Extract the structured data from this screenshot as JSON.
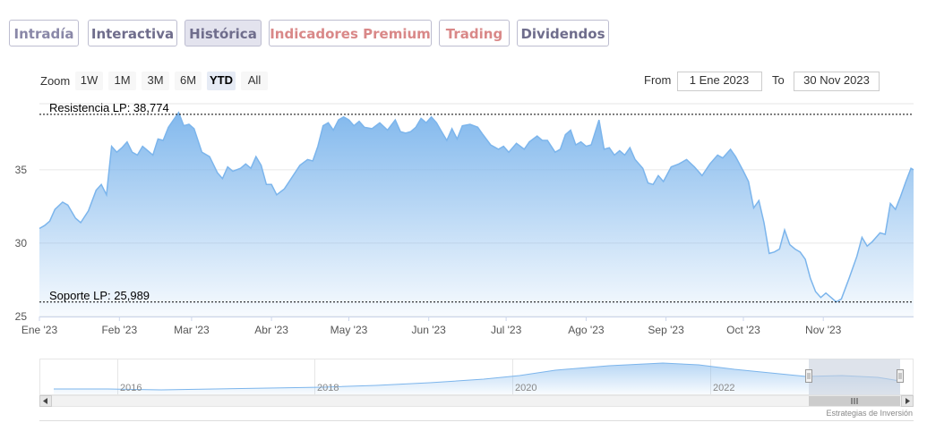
{
  "tabs": [
    {
      "label": "Intradía",
      "color": "#8a88a8",
      "active": false
    },
    {
      "label": "Interactiva",
      "color": "#6f6d8c",
      "active": false
    },
    {
      "label": "Histórica",
      "color": "#6f6d8c",
      "active": true
    },
    {
      "label": "Indicadores Premium",
      "color": "#d98888",
      "active": false
    },
    {
      "label": "Trading",
      "color": "#d98888",
      "active": false
    },
    {
      "label": "Dividendos",
      "color": "#6f6d8c",
      "active": false
    }
  ],
  "zoom": {
    "label": "Zoom",
    "buttons": [
      "1W",
      "1M",
      "3M",
      "6M",
      "YTD",
      "All"
    ],
    "selected": "YTD"
  },
  "range": {
    "from_label": "From",
    "from_value": "1 Ene 2023",
    "to_label": "To",
    "to_value": "30 Nov 2023"
  },
  "credit": "Estrategias de Inversión",
  "chart_data": {
    "type": "area",
    "title": "",
    "x_start": "2023-01-01",
    "x_end": "2023-12-06",
    "ylim": [
      25,
      39.5
    ],
    "y_ticks": [
      25,
      30,
      35
    ],
    "x_ticks": [
      {
        "date": "2023-01-01",
        "label": "Ene '23"
      },
      {
        "date": "2023-02-01",
        "label": "Feb '23"
      },
      {
        "date": "2023-03-01",
        "label": "Mar '23"
      },
      {
        "date": "2023-04-01",
        "label": "Abr '23"
      },
      {
        "date": "2023-05-01",
        "label": "May '23"
      },
      {
        "date": "2023-06-01",
        "label": "Jun '23"
      },
      {
        "date": "2023-07-01",
        "label": "Jul '23"
      },
      {
        "date": "2023-08-01",
        "label": "Ago '23"
      },
      {
        "date": "2023-09-01",
        "label": "Sep '23"
      },
      {
        "date": "2023-10-01",
        "label": "Oct '23"
      },
      {
        "date": "2023-11-01",
        "label": "Nov '23"
      }
    ],
    "grid": true,
    "color": "#7cb5ec",
    "series": [
      {
        "points": [
          [
            "2023-01-01",
            31.0
          ],
          [
            "2023-01-03",
            31.2
          ],
          [
            "2023-01-05",
            31.5
          ],
          [
            "2023-01-07",
            32.3
          ],
          [
            "2023-01-10",
            32.8
          ],
          [
            "2023-01-12",
            32.6
          ],
          [
            "2023-01-15",
            31.7
          ],
          [
            "2023-01-17",
            31.4
          ],
          [
            "2023-01-20",
            32.2
          ],
          [
            "2023-01-23",
            33.6
          ],
          [
            "2023-01-25",
            34.0
          ],
          [
            "2023-01-27",
            33.3
          ],
          [
            "2023-01-29",
            36.6
          ],
          [
            "2023-01-31",
            36.2
          ],
          [
            "2023-02-02",
            36.5
          ],
          [
            "2023-02-04",
            36.9
          ],
          [
            "2023-02-06",
            36.2
          ],
          [
            "2023-02-08",
            36.0
          ],
          [
            "2023-02-10",
            36.6
          ],
          [
            "2023-02-12",
            36.3
          ],
          [
            "2023-02-14",
            36.0
          ],
          [
            "2023-02-16",
            37.1
          ],
          [
            "2023-02-18",
            37.0
          ],
          [
            "2023-02-20",
            37.9
          ],
          [
            "2023-02-22",
            38.4
          ],
          [
            "2023-02-24",
            38.9
          ],
          [
            "2023-02-26",
            38.0
          ],
          [
            "2023-02-28",
            38.1
          ],
          [
            "2023-03-02",
            37.8
          ],
          [
            "2023-03-05",
            36.2
          ],
          [
            "2023-03-08",
            35.9
          ],
          [
            "2023-03-11",
            34.8
          ],
          [
            "2023-03-13",
            34.4
          ],
          [
            "2023-03-15",
            35.2
          ],
          [
            "2023-03-17",
            34.9
          ],
          [
            "2023-03-20",
            35.1
          ],
          [
            "2023-03-22",
            35.4
          ],
          [
            "2023-03-24",
            35.1
          ],
          [
            "2023-03-26",
            35.9
          ],
          [
            "2023-03-28",
            35.3
          ],
          [
            "2023-03-30",
            34.0
          ],
          [
            "2023-04-01",
            34.0
          ],
          [
            "2023-04-03",
            33.3
          ],
          [
            "2023-04-06",
            33.7
          ],
          [
            "2023-04-09",
            34.5
          ],
          [
            "2023-04-12",
            35.3
          ],
          [
            "2023-04-15",
            35.7
          ],
          [
            "2023-04-17",
            35.6
          ],
          [
            "2023-04-19",
            36.6
          ],
          [
            "2023-04-21",
            38.0
          ],
          [
            "2023-04-23",
            38.2
          ],
          [
            "2023-04-25",
            37.7
          ],
          [
            "2023-04-27",
            38.4
          ],
          [
            "2023-04-29",
            38.6
          ],
          [
            "2023-05-01",
            38.4
          ],
          [
            "2023-05-03",
            38.0
          ],
          [
            "2023-05-05",
            38.3
          ],
          [
            "2023-05-07",
            37.9
          ],
          [
            "2023-05-10",
            37.8
          ],
          [
            "2023-05-13",
            38.2
          ],
          [
            "2023-05-16",
            37.7
          ],
          [
            "2023-05-19",
            38.4
          ],
          [
            "2023-05-21",
            37.6
          ],
          [
            "2023-05-23",
            37.5
          ],
          [
            "2023-05-25",
            37.6
          ],
          [
            "2023-05-27",
            37.9
          ],
          [
            "2023-05-29",
            38.5
          ],
          [
            "2023-05-31",
            38.2
          ],
          [
            "2023-06-02",
            38.6
          ],
          [
            "2023-06-04",
            38.2
          ],
          [
            "2023-06-06",
            37.6
          ],
          [
            "2023-06-08",
            37.0
          ],
          [
            "2023-06-10",
            37.8
          ],
          [
            "2023-06-12",
            37.1
          ],
          [
            "2023-06-14",
            38.0
          ],
          [
            "2023-06-17",
            38.1
          ],
          [
            "2023-06-20",
            37.9
          ],
          [
            "2023-06-22",
            37.4
          ],
          [
            "2023-06-25",
            36.7
          ],
          [
            "2023-06-28",
            36.4
          ],
          [
            "2023-06-30",
            36.6
          ],
          [
            "2023-07-02",
            36.2
          ],
          [
            "2023-07-05",
            36.8
          ],
          [
            "2023-07-08",
            36.4
          ],
          [
            "2023-07-10",
            36.9
          ],
          [
            "2023-07-13",
            37.3
          ],
          [
            "2023-07-15",
            37.0
          ],
          [
            "2023-07-17",
            37.0
          ],
          [
            "2023-07-20",
            36.2
          ],
          [
            "2023-07-22",
            36.4
          ],
          [
            "2023-07-24",
            37.4
          ],
          [
            "2023-07-26",
            37.7
          ],
          [
            "2023-07-28",
            36.7
          ],
          [
            "2023-07-30",
            36.9
          ],
          [
            "2023-08-01",
            36.6
          ],
          [
            "2023-08-03",
            36.7
          ],
          [
            "2023-08-06",
            38.4
          ],
          [
            "2023-08-08",
            36.4
          ],
          [
            "2023-08-10",
            36.5
          ],
          [
            "2023-08-12",
            36.0
          ],
          [
            "2023-08-14",
            36.3
          ],
          [
            "2023-08-16",
            36.0
          ],
          [
            "2023-08-18",
            36.5
          ],
          [
            "2023-08-20",
            35.7
          ],
          [
            "2023-08-23",
            35.1
          ],
          [
            "2023-08-25",
            34.1
          ],
          [
            "2023-08-27",
            34.0
          ],
          [
            "2023-08-29",
            34.6
          ],
          [
            "2023-08-31",
            34.2
          ],
          [
            "2023-09-03",
            35.2
          ],
          [
            "2023-09-06",
            35.4
          ],
          [
            "2023-09-09",
            35.7
          ],
          [
            "2023-09-12",
            35.2
          ],
          [
            "2023-09-15",
            34.6
          ],
          [
            "2023-09-18",
            35.4
          ],
          [
            "2023-09-21",
            36.0
          ],
          [
            "2023-09-23",
            35.8
          ],
          [
            "2023-09-26",
            36.4
          ],
          [
            "2023-09-28",
            35.9
          ],
          [
            "2023-10-01",
            34.9
          ],
          [
            "2023-10-03",
            34.2
          ],
          [
            "2023-10-05",
            32.4
          ],
          [
            "2023-10-07",
            32.9
          ],
          [
            "2023-10-09",
            31.4
          ],
          [
            "2023-10-11",
            29.3
          ],
          [
            "2023-10-13",
            29.4
          ],
          [
            "2023-10-15",
            29.6
          ],
          [
            "2023-10-17",
            30.9
          ],
          [
            "2023-10-19",
            29.9
          ],
          [
            "2023-10-21",
            29.6
          ],
          [
            "2023-10-23",
            29.4
          ],
          [
            "2023-10-25",
            28.9
          ],
          [
            "2023-10-27",
            27.6
          ],
          [
            "2023-10-29",
            26.7
          ],
          [
            "2023-10-31",
            26.3
          ],
          [
            "2023-11-02",
            26.6
          ],
          [
            "2023-11-04",
            26.3
          ],
          [
            "2023-11-06",
            26.0
          ],
          [
            "2023-11-08",
            26.2
          ],
          [
            "2023-11-11",
            27.6
          ],
          [
            "2023-11-14",
            29.1
          ],
          [
            "2023-11-16",
            30.4
          ],
          [
            "2023-11-18",
            29.8
          ],
          [
            "2023-11-20",
            30.1
          ],
          [
            "2023-11-23",
            30.7
          ],
          [
            "2023-11-25",
            30.6
          ],
          [
            "2023-11-27",
            32.7
          ],
          [
            "2023-11-29",
            32.3
          ],
          [
            "2023-12-01",
            33.2
          ],
          [
            "2023-12-03",
            34.2
          ],
          [
            "2023-12-05",
            35.1
          ],
          [
            "2023-12-06",
            35.0
          ]
        ]
      }
    ],
    "annotations": [
      {
        "label": "Resistencia LP: 38,774",
        "value": 38.774
      },
      {
        "label": "Soporte LP: 25,989",
        "value": 25.989
      }
    ],
    "navigator": {
      "year_labels": [
        "2016",
        "2018",
        "2020",
        "2022"
      ],
      "selected_range": [
        "2023-01-01",
        "2023-12-06"
      ]
    }
  }
}
